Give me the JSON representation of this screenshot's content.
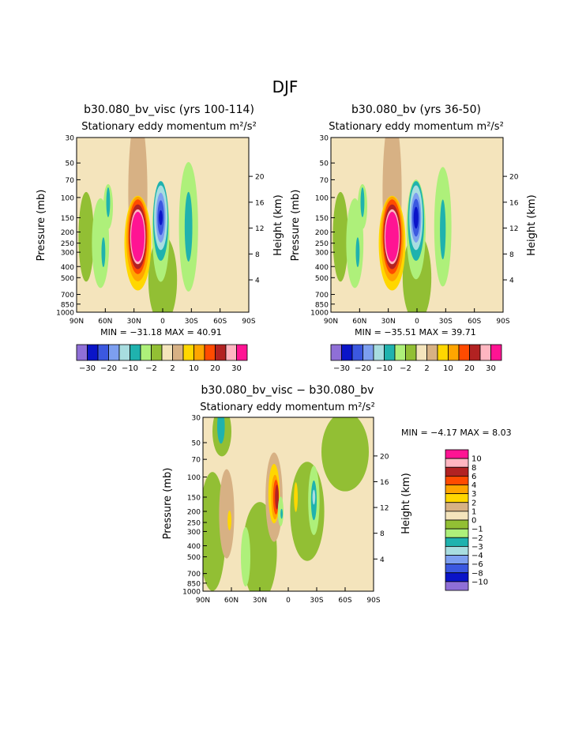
{
  "page_title": "DJF",
  "palette": {
    "m30": "#8f6fd7",
    "m20": "#0a14c8",
    "m15": "#3b58e0",
    "m10": "#7d9ff0",
    "m5": "#a8dde0",
    "m4": "#1fb2ae",
    "m2": "#aef07a",
    "m1": "#92bf34",
    "p1": "#f4e4bc",
    "p2": "#d7b184",
    "p5": "#ffd700",
    "p10": "#ffa500",
    "p15": "#ff4b00",
    "p20": "#b22222",
    "p25": "#ffb6c1",
    "p30": "#ff1493"
  },
  "panels": [
    {
      "title": "b30.080_bv_visc (yrs 100-114)",
      "subtitle": "Stationary eddy momentum m²/s²",
      "stats": "MIN = −31.18   MAX =  40.91",
      "blobs": [
        {
          "c": "m1",
          "lat": 0,
          "p": 520,
          "rx": 15,
          "rp": 0.9
        },
        {
          "c": "m1",
          "lat": 80,
          "p": 220,
          "rx": 8,
          "rp": 0.9
        },
        {
          "c": "m2",
          "lat": 65,
          "p": 250,
          "rx": 9,
          "rp": 0.9
        },
        {
          "c": "m2",
          "lat": 57,
          "p": 120,
          "rx": 5,
          "rp": 0.45
        },
        {
          "c": "m4",
          "lat": 57,
          "p": 110,
          "rx": 2,
          "rp": 0.3
        },
        {
          "c": "m4",
          "lat": 62,
          "p": 300,
          "rx": 2,
          "rp": 0.3
        },
        {
          "c": "p2",
          "lat": 26,
          "p": 90,
          "rx": 10,
          "rp": 1.6
        },
        {
          "c": "p5",
          "lat": 26,
          "p": 250,
          "rx": 14,
          "rp": 0.95
        },
        {
          "c": "p10",
          "lat": 26,
          "p": 230,
          "rx": 12,
          "rp": 0.85
        },
        {
          "c": "p15",
          "lat": 26,
          "p": 220,
          "rx": 10,
          "rp": 0.75
        },
        {
          "c": "p20",
          "lat": 26,
          "p": 220,
          "rx": 9,
          "rp": 0.65
        },
        {
          "c": "p25",
          "lat": 26,
          "p": 220,
          "rx": 8,
          "rp": 0.55
        },
        {
          "c": "p30",
          "lat": 26,
          "p": 220,
          "rx": 7,
          "rp": 0.5
        },
        {
          "c": "m2",
          "lat": 2,
          "p": 200,
          "rx": 9,
          "rp": 1.0
        },
        {
          "c": "m4",
          "lat": 2,
          "p": 160,
          "rx": 8,
          "rp": 0.8
        },
        {
          "c": "m5",
          "lat": 2,
          "p": 150,
          "rx": 7,
          "rp": 0.65
        },
        {
          "c": "m10",
          "lat": 2,
          "p": 150,
          "rx": 5,
          "rp": 0.5
        },
        {
          "c": "m15",
          "lat": 2,
          "p": 150,
          "rx": 3.5,
          "rp": 0.35
        },
        {
          "c": "m20",
          "lat": 2,
          "p": 150,
          "rx": 2,
          "rp": 0.15
        },
        {
          "c": "m2",
          "lat": -27,
          "p": 180,
          "rx": 10,
          "rp": 1.3
        },
        {
          "c": "m4",
          "lat": -27,
          "p": 180,
          "rx": 4,
          "rp": 0.7
        }
      ]
    },
    {
      "title": "b30.080_bv (yrs 36-50)",
      "subtitle": "Stationary eddy momentum m²/s²",
      "stats": "MIN = −35.51   MAX =  39.71",
      "blobs": [
        {
          "c": "m1",
          "lat": 0,
          "p": 500,
          "rx": 15,
          "rp": 0.9
        },
        {
          "c": "m1",
          "lat": 80,
          "p": 220,
          "rx": 8,
          "rp": 0.9
        },
        {
          "c": "m2",
          "lat": 65,
          "p": 250,
          "rx": 9,
          "rp": 0.9
        },
        {
          "c": "m2",
          "lat": 57,
          "p": 120,
          "rx": 5,
          "rp": 0.45
        },
        {
          "c": "m4",
          "lat": 57,
          "p": 110,
          "rx": 2,
          "rp": 0.3
        },
        {
          "c": "m4",
          "lat": 62,
          "p": 300,
          "rx": 2,
          "rp": 0.3
        },
        {
          "c": "p2",
          "lat": 26,
          "p": 90,
          "rx": 10,
          "rp": 1.6
        },
        {
          "c": "p5",
          "lat": 26,
          "p": 250,
          "rx": 14,
          "rp": 0.95
        },
        {
          "c": "p10",
          "lat": 26,
          "p": 230,
          "rx": 12,
          "rp": 0.85
        },
        {
          "c": "p15",
          "lat": 26,
          "p": 220,
          "rx": 10,
          "rp": 0.75
        },
        {
          "c": "p20",
          "lat": 26,
          "p": 220,
          "rx": 9,
          "rp": 0.65
        },
        {
          "c": "p25",
          "lat": 26,
          "p": 220,
          "rx": 8,
          "rp": 0.55
        },
        {
          "c": "p30",
          "lat": 26,
          "p": 220,
          "rx": 7,
          "rp": 0.5
        },
        {
          "c": "m2",
          "lat": 1,
          "p": 190,
          "rx": 10,
          "rp": 1.0
        },
        {
          "c": "m4",
          "lat": 1,
          "p": 160,
          "rx": 8.5,
          "rp": 0.8
        },
        {
          "c": "m5",
          "lat": 1,
          "p": 150,
          "rx": 7,
          "rp": 0.65
        },
        {
          "c": "m10",
          "lat": 1,
          "p": 150,
          "rx": 5.5,
          "rp": 0.5
        },
        {
          "c": "m15",
          "lat": 1,
          "p": 150,
          "rx": 4,
          "rp": 0.38
        },
        {
          "c": "m20",
          "lat": 1,
          "p": 150,
          "rx": 2.5,
          "rp": 0.22
        },
        {
          "c": "m2",
          "lat": -27,
          "p": 180,
          "rx": 9,
          "rp": 1.2
        },
        {
          "c": "m4",
          "lat": -27,
          "p": 190,
          "rx": 3,
          "rp": 0.6
        }
      ]
    },
    {
      "title": "b30.080_bv_visc − b30.080_bv",
      "subtitle": "Stationary eddy momentum m²/s²",
      "stats": "MIN =  −4.17   MAX =   8.03",
      "blobs": [
        {
          "c": "m1",
          "lat": 80,
          "p": 300,
          "rx": 14,
          "rp": 1.2
        },
        {
          "c": "m1",
          "lat": 30,
          "p": 450,
          "rx": 18,
          "rp": 1.0
        },
        {
          "c": "m1",
          "lat": -20,
          "p": 200,
          "rx": 18,
          "rp": 1.0
        },
        {
          "c": "m1",
          "lat": -60,
          "p": 60,
          "rx": 25,
          "rp": 0.8
        },
        {
          "c": "m1",
          "lat": 70,
          "p": 40,
          "rx": 10,
          "rp": 0.5
        },
        {
          "c": "m4",
          "lat": 71,
          "p": 36,
          "rx": 4,
          "rp": 0.35
        },
        {
          "c": "p2",
          "lat": 65,
          "p": 210,
          "rx": 8,
          "rp": 0.9
        },
        {
          "c": "p5",
          "lat": 62,
          "p": 240,
          "rx": 2,
          "rp": 0.2
        },
        {
          "c": "m2",
          "lat": 45,
          "p": 500,
          "rx": 5,
          "rp": 0.6
        },
        {
          "c": "p2",
          "lat": 15,
          "p": 150,
          "rx": 9,
          "rp": 0.9
        },
        {
          "c": "p5",
          "lat": 15,
          "p": 140,
          "rx": 6,
          "rp": 0.6
        },
        {
          "c": "p10",
          "lat": 14,
          "p": 150,
          "rx": 4,
          "rp": 0.45
        },
        {
          "c": "p15",
          "lat": 13,
          "p": 150,
          "rx": 3,
          "rp": 0.35
        },
        {
          "c": "p20",
          "lat": 12,
          "p": 150,
          "rx": 2,
          "rp": 0.25
        },
        {
          "c": "m2",
          "lat": 8,
          "p": 200,
          "rx": 3,
          "rp": 0.3
        },
        {
          "c": "m4",
          "lat": 7,
          "p": 210,
          "rx": 1.2,
          "rp": 0.1
        },
        {
          "c": "p5",
          "lat": -8,
          "p": 150,
          "rx": 2,
          "rp": 0.3
        },
        {
          "c": "m2",
          "lat": -27,
          "p": 160,
          "rx": 6,
          "rp": 0.7
        },
        {
          "c": "m4",
          "lat": -27,
          "p": 160,
          "rx": 3,
          "rp": 0.4
        },
        {
          "c": "m5",
          "lat": -27,
          "p": 150,
          "rx": 1.5,
          "rp": 0.15
        }
      ]
    }
  ],
  "axes": {
    "ylabel_left": "Pressure (mb)",
    "ylabel_right": "Height (km)",
    "p_ticks": [
      30,
      50,
      70,
      100,
      150,
      200,
      250,
      300,
      400,
      500,
      700,
      850,
      1000
    ],
    "p_labels": [
      "30",
      "50",
      "70",
      "100",
      "150",
      "200",
      "250",
      "300",
      "400",
      "500",
      "700",
      "850",
      "1000"
    ],
    "h_ticks": [
      20,
      16,
      12,
      8,
      4
    ],
    "h_labels": [
      "20",
      "16",
      "12",
      "8",
      "4"
    ],
    "lat_ticks": [
      90,
      60,
      30,
      0,
      -30,
      -60,
      -90
    ],
    "lat_labels": [
      "90N",
      "60N",
      "30N",
      "0",
      "30S",
      "60S",
      "90S"
    ]
  },
  "colorbar_main": {
    "colors": [
      "m30",
      "m20",
      "m15",
      "m10",
      "m5",
      "m4",
      "m2",
      "m1",
      "p1",
      "p2",
      "p5",
      "p10",
      "p15",
      "p20",
      "p25",
      "p30"
    ],
    "labels": [
      "−30",
      "−20",
      "−10",
      "−2",
      "2",
      "10",
      "20",
      "30"
    ]
  },
  "colorbar_diff": {
    "colors": [
      "p30",
      "p25",
      "p20",
      "p15",
      "p10",
      "p5",
      "p2",
      "p1",
      "m1",
      "m2",
      "m4",
      "m5",
      "m10",
      "m15",
      "m20",
      "m30"
    ],
    "labels": [
      "10",
      "8",
      "6",
      "4",
      "3",
      "2",
      "1",
      "0",
      "−1",
      "−2",
      "−3",
      "−4",
      "−6",
      "−8",
      "−10"
    ]
  }
}
